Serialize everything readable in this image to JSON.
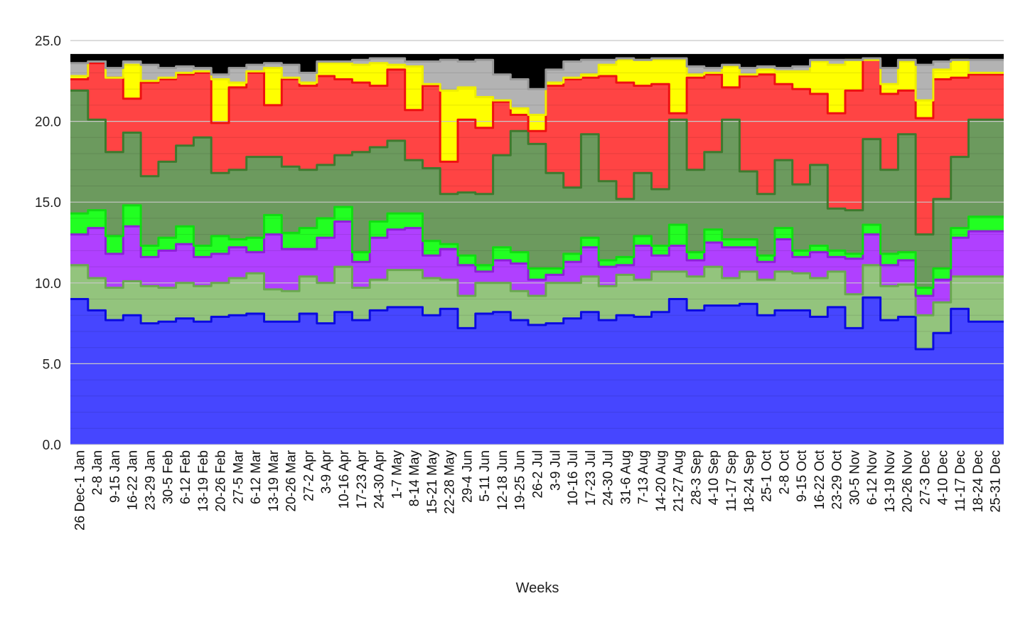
{
  "chart_data": {
    "type": "area",
    "step": true,
    "stacked": true,
    "xlabel": "Weeks",
    "ylabel": "",
    "ylim": [
      0,
      25
    ],
    "yticks": [
      "0.0",
      "5.0",
      "10.0",
      "15.0",
      "20.0",
      "25.0"
    ],
    "grid": true,
    "legend": "none",
    "categories": [
      "26 Dec-1 Jan",
      "2-8 Jan",
      "9-15 Jan",
      "16-22 Jan",
      "23-29 Jan",
      "30-5 Feb",
      "6-12 Feb",
      "13-19 Feb",
      "20-26 Feb",
      "27-5 Mar",
      "6-12 Mar",
      "13-19 Mar",
      "20-26 Mar",
      "27-2 Apr",
      "3-9 Apr",
      "10-16 Apr",
      "17-23 Apr",
      "24-30 Apr",
      "1-7 May",
      "8-14 May",
      "15-21 May",
      "22-28 May",
      "29-4 Jun",
      "5-11 Jun",
      "12-18 Jun",
      "19-25 Jun",
      "26-2 Jul",
      "3-9 Jul",
      "10-16 Jul",
      "17-23 Jul",
      "24-30 Jul",
      "31-6 Aug",
      "7-13 Aug",
      "14-20 Aug",
      "21-27 Aug",
      "28-3 Sep",
      "4-10 Sep",
      "11-17 Sep",
      "18-24 Sep",
      "25-1 Oct",
      "2-8 Oct",
      "9-15 Oct",
      "16-22 Oct",
      "23-29 Oct",
      "30-5 Nov",
      "6-12 Nov",
      "13-19 Nov",
      "20-26 Nov",
      "27-3 Dec",
      "4-10 Dec",
      "11-17 Dec",
      "18-24 Dec",
      "25-31 Dec"
    ],
    "cumulative_series": [
      {
        "color": "#4646ff",
        "edge": "#0a0ae0",
        "values": [
          9.0,
          8.3,
          7.7,
          8.0,
          7.5,
          7.6,
          7.8,
          7.6,
          7.9,
          8.0,
          8.1,
          7.6,
          7.6,
          8.1,
          7.5,
          8.2,
          7.7,
          8.3,
          8.5,
          8.5,
          8.0,
          8.4,
          7.2,
          8.1,
          8.2,
          7.7,
          7.4,
          7.5,
          7.8,
          8.2,
          7.7,
          8.0,
          7.9,
          8.2,
          9.0,
          8.3,
          8.6,
          8.6,
          8.7,
          8.0,
          8.3,
          8.3,
          7.9,
          8.5,
          7.2,
          9.1,
          7.7,
          7.9,
          5.9,
          6.9,
          8.4,
          7.6,
          7.6
        ]
      },
      {
        "color": "#93c47d",
        "edge": "#6aa84f",
        "values": [
          11.1,
          10.3,
          9.7,
          10.1,
          9.8,
          9.7,
          10.0,
          9.8,
          10.0,
          10.3,
          10.6,
          9.6,
          9.5,
          10.4,
          10.0,
          11.0,
          9.7,
          10.2,
          10.8,
          10.8,
          10.3,
          10.2,
          9.2,
          10.0,
          10.0,
          9.5,
          9.2,
          10.0,
          10.0,
          10.4,
          9.8,
          10.5,
          10.2,
          10.7,
          10.7,
          10.4,
          11.0,
          10.3,
          10.7,
          10.2,
          10.7,
          10.6,
          10.3,
          10.7,
          9.3,
          11.1,
          9.8,
          9.9,
          8.0,
          8.8,
          10.4,
          10.4,
          10.4
        ]
      },
      {
        "color": "#b040ff",
        "edge": "#8e20d8",
        "values": [
          13.0,
          13.4,
          11.8,
          13.5,
          11.6,
          12.0,
          12.4,
          11.6,
          11.8,
          12.2,
          11.9,
          13.0,
          12.1,
          12.1,
          12.8,
          13.8,
          11.3,
          12.8,
          13.3,
          13.4,
          11.7,
          12.1,
          11.1,
          10.7,
          11.4,
          11.2,
          10.2,
          10.5,
          11.3,
          12.2,
          11.0,
          11.1,
          12.3,
          11.7,
          12.3,
          11.4,
          12.5,
          12.2,
          12.2,
          11.3,
          12.7,
          11.6,
          11.9,
          11.6,
          11.5,
          13.0,
          11.1,
          11.4,
          9.2,
          10.2,
          12.8,
          13.2,
          13.2
        ]
      },
      {
        "color": "#22ff22",
        "edge": "#11dd11",
        "values": [
          14.3,
          14.5,
          12.9,
          14.8,
          12.3,
          12.8,
          13.5,
          12.3,
          12.9,
          12.7,
          12.8,
          14.2,
          13.1,
          13.4,
          14.0,
          14.7,
          11.9,
          13.8,
          14.3,
          14.3,
          12.6,
          12.4,
          11.7,
          11.1,
          12.2,
          11.9,
          10.9,
          10.9,
          11.8,
          12.8,
          11.4,
          11.6,
          12.9,
          12.3,
          13.6,
          11.9,
          13.3,
          12.7,
          12.7,
          11.7,
          13.4,
          12.0,
          12.3,
          12.0,
          11.8,
          13.6,
          11.8,
          11.9,
          9.7,
          10.9,
          13.4,
          14.1,
          14.1
        ]
      },
      {
        "color": "#6c9a5e",
        "edge": "#3e7a2e",
        "values": [
          21.9,
          20.1,
          18.1,
          19.3,
          16.6,
          17.5,
          18.5,
          19.0,
          16.8,
          17.0,
          17.8,
          17.8,
          17.2,
          17.0,
          17.3,
          17.9,
          18.1,
          18.4,
          18.8,
          17.6,
          17.1,
          15.5,
          15.6,
          15.5,
          17.9,
          19.4,
          18.6,
          16.8,
          15.9,
          19.2,
          16.3,
          15.2,
          16.8,
          15.8,
          20.1,
          17.0,
          18.1,
          20.1,
          16.9,
          15.5,
          17.6,
          16.1,
          17.3,
          14.6,
          14.5,
          18.9,
          17.0,
          19.2,
          13.0,
          15.2,
          17.8,
          20.1,
          20.1
        ]
      },
      {
        "color": "#ff4444",
        "edge": "#ee1111",
        "values": [
          22.6,
          23.6,
          22.7,
          21.4,
          22.4,
          22.6,
          22.9,
          23.0,
          19.9,
          22.1,
          23.0,
          21.0,
          22.6,
          22.2,
          22.8,
          22.6,
          22.4,
          22.2,
          23.2,
          20.7,
          22.2,
          17.5,
          20.1,
          19.6,
          21.2,
          20.4,
          19.4,
          22.2,
          22.6,
          22.7,
          22.8,
          22.4,
          22.2,
          22.3,
          20.5,
          22.7,
          22.9,
          22.1,
          22.8,
          22.9,
          22.3,
          22.0,
          21.7,
          20.5,
          21.9,
          23.8,
          21.7,
          21.9,
          20.2,
          22.6,
          22.7,
          22.9,
          22.9
        ]
      },
      {
        "color": "#ffff00",
        "edge": "#eeee00",
        "values": [
          22.8,
          23.7,
          22.7,
          23.5,
          22.5,
          22.7,
          23.0,
          23.1,
          22.6,
          22.4,
          23.1,
          23.3,
          22.7,
          22.4,
          23.6,
          23.6,
          23.5,
          23.6,
          23.5,
          23.4,
          22.3,
          21.9,
          22.1,
          21.5,
          21.3,
          20.8,
          20.4,
          22.4,
          22.7,
          22.9,
          23.5,
          23.8,
          23.8,
          23.8,
          23.8,
          22.9,
          23.0,
          23.4,
          22.9,
          23.2,
          23.1,
          23.1,
          23.7,
          23.5,
          23.8,
          23.8,
          22.3,
          23.7,
          21.3,
          23.2,
          23.8,
          23.0,
          23.0
        ]
      },
      {
        "color": "#b3b3b3",
        "edge": "#999999",
        "values": [
          23.6,
          23.7,
          23.3,
          23.7,
          23.5,
          23.3,
          23.4,
          23.3,
          22.9,
          23.3,
          23.5,
          23.6,
          23.5,
          23.0,
          23.7,
          23.7,
          23.8,
          23.9,
          23.9,
          23.7,
          23.7,
          23.8,
          23.7,
          23.8,
          22.9,
          22.6,
          22.0,
          23.2,
          23.7,
          23.8,
          23.8,
          23.9,
          23.8,
          23.9,
          23.9,
          23.4,
          23.3,
          23.5,
          23.3,
          23.4,
          23.3,
          23.4,
          23.8,
          23.8,
          23.8,
          23.9,
          23.3,
          23.8,
          23.5,
          23.7,
          23.8,
          23.8,
          23.8
        ]
      },
      {
        "color": "#000000",
        "edge": "#000000",
        "values": [
          24.1,
          24.1,
          24.1,
          24.1,
          24.1,
          24.1,
          24.1,
          24.1,
          24.1,
          24.1,
          24.1,
          24.1,
          24.1,
          24.1,
          24.1,
          24.1,
          24.1,
          24.1,
          24.1,
          24.1,
          24.1,
          24.1,
          24.1,
          24.1,
          24.1,
          24.1,
          24.1,
          24.1,
          24.1,
          24.1,
          24.1,
          24.1,
          24.1,
          24.1,
          24.1,
          24.1,
          24.1,
          24.1,
          24.1,
          24.1,
          24.1,
          24.1,
          24.1,
          24.1,
          24.1,
          24.1,
          24.1,
          24.1,
          24.1,
          24.1,
          24.1,
          24.1,
          24.1
        ]
      }
    ]
  }
}
